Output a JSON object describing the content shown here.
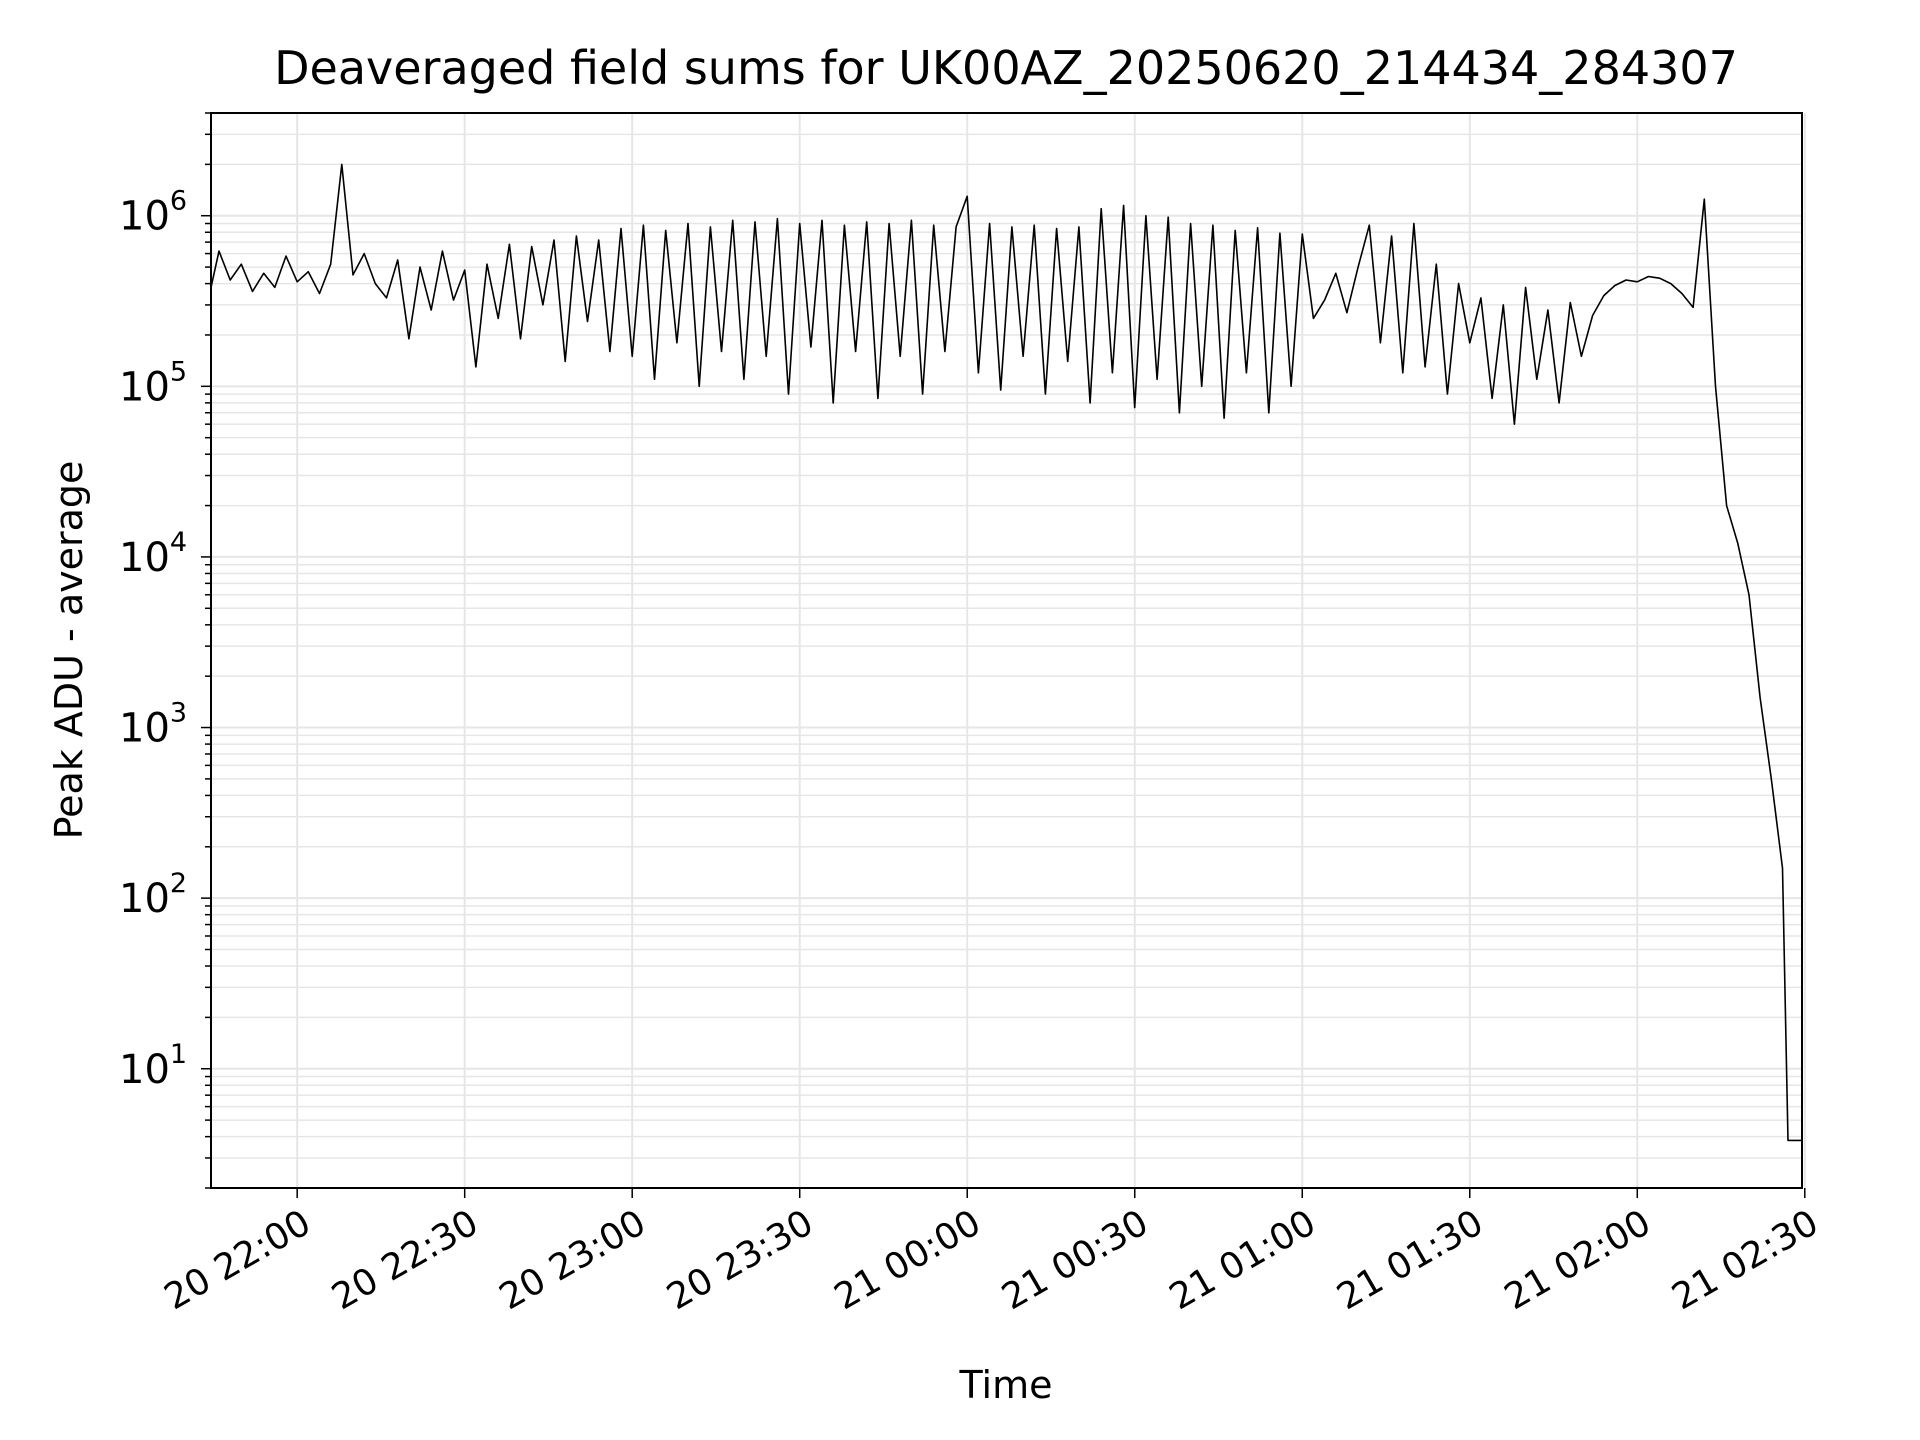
{
  "chart_data": {
    "type": "line",
    "title": "Deaveraged field sums for UK00AZ_20250620_214434_284307",
    "xlabel": "Time",
    "ylabel": "Peak ADU - average",
    "yscale": "log",
    "ylim": [
      2,
      4000000
    ],
    "xlim": [
      "2025-06-20 21:44:34",
      "2025-06-21 02:29:30"
    ],
    "grid": true,
    "line_color": "#000000",
    "grid_color": "#e6e6e6",
    "x_ticks": [
      {
        "t": "2025-06-20 22:00",
        "label": "20 22:00"
      },
      {
        "t": "2025-06-20 22:30",
        "label": "20 22:30"
      },
      {
        "t": "2025-06-20 23:00",
        "label": "20 23:00"
      },
      {
        "t": "2025-06-20 23:30",
        "label": "20 23:30"
      },
      {
        "t": "2025-06-21 00:00",
        "label": "21 00:00"
      },
      {
        "t": "2025-06-21 00:30",
        "label": "21 00:30"
      },
      {
        "t": "2025-06-21 01:00",
        "label": "21 01:00"
      },
      {
        "t": "2025-06-21 01:30",
        "label": "21 01:30"
      },
      {
        "t": "2025-06-21 02:00",
        "label": "21 02:00"
      },
      {
        "t": "2025-06-21 02:30",
        "label": "21 02:30"
      }
    ],
    "y_ticks": [
      {
        "value": 10,
        "base": "10",
        "exp": "1"
      },
      {
        "value": 100,
        "base": "10",
        "exp": "2"
      },
      {
        "value": 1000,
        "base": "10",
        "exp": "3"
      },
      {
        "value": 10000,
        "base": "10",
        "exp": "4"
      },
      {
        "value": 100000,
        "base": "10",
        "exp": "5"
      },
      {
        "value": 1000000,
        "base": "10",
        "exp": "6"
      }
    ],
    "series": [
      {
        "x": [
          "2025-06-20 21:44:34",
          "2025-06-20 21:46",
          "2025-06-20 21:48",
          "2025-06-20 21:50",
          "2025-06-20 21:52",
          "2025-06-20 21:54",
          "2025-06-20 21:56",
          "2025-06-20 21:58",
          "2025-06-20 22:00",
          "2025-06-20 22:02",
          "2025-06-20 22:04",
          "2025-06-20 22:06",
          "2025-06-20 22:08",
          "2025-06-20 22:10",
          "2025-06-20 22:12",
          "2025-06-20 22:14",
          "2025-06-20 22:16",
          "2025-06-20 22:18",
          "2025-06-20 22:20",
          "2025-06-20 22:22",
          "2025-06-20 22:24",
          "2025-06-20 22:26",
          "2025-06-20 22:28",
          "2025-06-20 22:30",
          "2025-06-20 22:32",
          "2025-06-20 22:34",
          "2025-06-20 22:36",
          "2025-06-20 22:38",
          "2025-06-20 22:40",
          "2025-06-20 22:42",
          "2025-06-20 22:44",
          "2025-06-20 22:46",
          "2025-06-20 22:48",
          "2025-06-20 22:50",
          "2025-06-20 22:52",
          "2025-06-20 22:54",
          "2025-06-20 22:56",
          "2025-06-20 22:58",
          "2025-06-20 23:00",
          "2025-06-20 23:02",
          "2025-06-20 23:04",
          "2025-06-20 23:06",
          "2025-06-20 23:08",
          "2025-06-20 23:10",
          "2025-06-20 23:12",
          "2025-06-20 23:14",
          "2025-06-20 23:16",
          "2025-06-20 23:18",
          "2025-06-20 23:20",
          "2025-06-20 23:22",
          "2025-06-20 23:24",
          "2025-06-20 23:26",
          "2025-06-20 23:28",
          "2025-06-20 23:30",
          "2025-06-20 23:32",
          "2025-06-20 23:34",
          "2025-06-20 23:36",
          "2025-06-20 23:38",
          "2025-06-20 23:40",
          "2025-06-20 23:42",
          "2025-06-20 23:44",
          "2025-06-20 23:46",
          "2025-06-20 23:48",
          "2025-06-20 23:50",
          "2025-06-20 23:52",
          "2025-06-20 23:54",
          "2025-06-20 23:56",
          "2025-06-20 23:58",
          "2025-06-21 00:00",
          "2025-06-21 00:02",
          "2025-06-21 00:04",
          "2025-06-21 00:06",
          "2025-06-21 00:08",
          "2025-06-21 00:10",
          "2025-06-21 00:12",
          "2025-06-21 00:14",
          "2025-06-21 00:16",
          "2025-06-21 00:18",
          "2025-06-21 00:20",
          "2025-06-21 00:22",
          "2025-06-21 00:24",
          "2025-06-21 00:26",
          "2025-06-21 00:28",
          "2025-06-21 00:30",
          "2025-06-21 00:32",
          "2025-06-21 00:34",
          "2025-06-21 00:36",
          "2025-06-21 00:38",
          "2025-06-21 00:40",
          "2025-06-21 00:42",
          "2025-06-21 00:44",
          "2025-06-21 00:46",
          "2025-06-21 00:48",
          "2025-06-21 00:50",
          "2025-06-21 00:52",
          "2025-06-21 00:54",
          "2025-06-21 00:56",
          "2025-06-21 00:58",
          "2025-06-21 01:00",
          "2025-06-21 01:02",
          "2025-06-21 01:04",
          "2025-06-21 01:06",
          "2025-06-21 01:08",
          "2025-06-21 01:10",
          "2025-06-21 01:12",
          "2025-06-21 01:14",
          "2025-06-21 01:16",
          "2025-06-21 01:18",
          "2025-06-21 01:20",
          "2025-06-21 01:22",
          "2025-06-21 01:24",
          "2025-06-21 01:26",
          "2025-06-21 01:28",
          "2025-06-21 01:30",
          "2025-06-21 01:32",
          "2025-06-21 01:34",
          "2025-06-21 01:36",
          "2025-06-21 01:38",
          "2025-06-21 01:40",
          "2025-06-21 01:42",
          "2025-06-21 01:44",
          "2025-06-21 01:46",
          "2025-06-21 01:48",
          "2025-06-21 01:50",
          "2025-06-21 01:52",
          "2025-06-21 01:54",
          "2025-06-21 01:56",
          "2025-06-21 01:58",
          "2025-06-21 02:00",
          "2025-06-21 02:02",
          "2025-06-21 02:04",
          "2025-06-21 02:06",
          "2025-06-21 02:08",
          "2025-06-21 02:10",
          "2025-06-21 02:12",
          "2025-06-21 02:14",
          "2025-06-21 02:16",
          "2025-06-21 02:18",
          "2025-06-21 02:20",
          "2025-06-21 02:22",
          "2025-06-21 02:24",
          "2025-06-21 02:26",
          "2025-06-21 02:27",
          "2025-06-21 02:28",
          "2025-06-21 02:29:30"
        ],
        "y": [
          380000,
          620000,
          420000,
          520000,
          360000,
          460000,
          380000,
          580000,
          410000,
          470000,
          350000,
          520000,
          2000000,
          450000,
          600000,
          400000,
          330000,
          550000,
          190000,
          500000,
          280000,
          620000,
          320000,
          480000,
          130000,
          520000,
          250000,
          680000,
          190000,
          660000,
          300000,
          720000,
          140000,
          760000,
          240000,
          720000,
          160000,
          840000,
          150000,
          880000,
          110000,
          820000,
          180000,
          900000,
          100000,
          860000,
          160000,
          940000,
          110000,
          920000,
          150000,
          960000,
          90000,
          900000,
          170000,
          940000,
          80000,
          880000,
          160000,
          920000,
          85000,
          900000,
          150000,
          940000,
          90000,
          880000,
          160000,
          860000,
          1300000,
          120000,
          900000,
          95000,
          860000,
          150000,
          880000,
          90000,
          840000,
          140000,
          860000,
          80000,
          1100000,
          120000,
          1150000,
          75000,
          1000000,
          110000,
          980000,
          70000,
          900000,
          100000,
          880000,
          65000,
          820000,
          120000,
          850000,
          70000,
          790000,
          100000,
          780000,
          250000,
          320000,
          460000,
          270000,
          500000,
          880000,
          180000,
          760000,
          120000,
          900000,
          130000,
          520000,
          90000,
          400000,
          180000,
          330000,
          85000,
          300000,
          60000,
          380000,
          110000,
          280000,
          80000,
          310000,
          150000,
          260000,
          340000,
          390000,
          420000,
          410000,
          440000,
          430000,
          400000,
          350000,
          290000,
          1250000,
          100000,
          20000,
          12000,
          6000,
          1500,
          500,
          150,
          3.8,
          3.8,
          3.8
        ]
      }
    ]
  }
}
